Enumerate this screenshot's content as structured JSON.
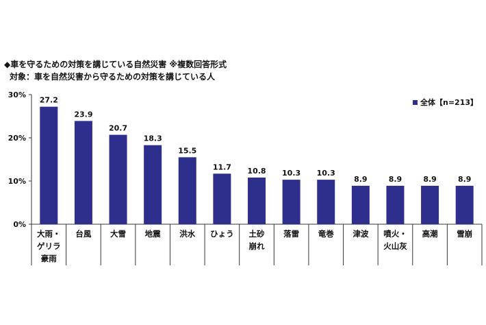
{
  "header": {
    "title": "◆車を守るための対策を講じている自然災害 ※複数回答形式",
    "subtitle": "対象：車を自然災害から守るための対策を講じている人"
  },
  "chart_data": {
    "type": "bar",
    "categories": [
      [
        "大雨・",
        "ゲリラ",
        "豪雨"
      ],
      [
        "台風"
      ],
      [
        "大雪"
      ],
      [
        "地震"
      ],
      [
        "洪水"
      ],
      [
        "ひょう"
      ],
      [
        "土砂",
        "崩れ"
      ],
      [
        "落雷"
      ],
      [
        "竜巻"
      ],
      [
        "津波"
      ],
      [
        "噴火・",
        "火山灰"
      ],
      [
        "高潮"
      ],
      [
        "雪崩"
      ]
    ],
    "series": [
      {
        "name": "全体【n=213】",
        "values": [
          27.2,
          23.9,
          20.7,
          18.3,
          15.5,
          11.7,
          10.8,
          10.3,
          10.3,
          8.9,
          8.9,
          8.9,
          8.9
        ],
        "labels": [
          "27.2",
          "23.9",
          "20.7",
          "18.3",
          "15.5",
          "11.7",
          "10.8",
          "10.3",
          "10.3",
          "8.9",
          "8.9",
          "8.9",
          "8.9"
        ]
      }
    ],
    "ylim": [
      0,
      30
    ],
    "yticks": [
      "0%",
      "10%",
      "20%",
      "30%"
    ],
    "bar_color": "#2E2E8C",
    "grid": false,
    "legend_position": "top-right"
  }
}
